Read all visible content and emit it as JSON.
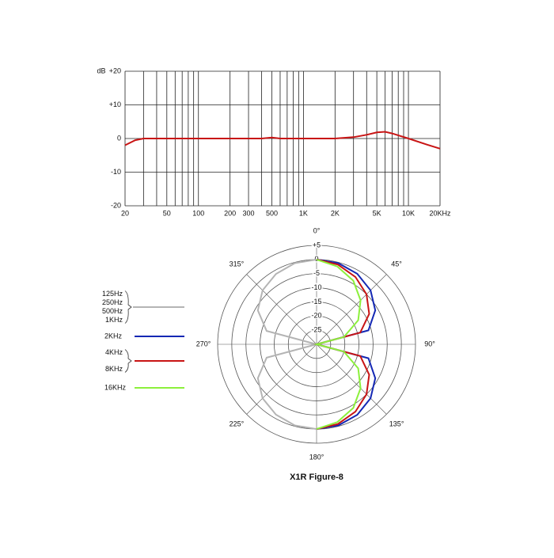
{
  "chart_data": [
    {
      "type": "line",
      "y_label": "dB",
      "log_x": true,
      "grid": true,
      "xlim": [
        20,
        20000
      ],
      "ylim": [
        -20,
        20
      ],
      "xticks": [
        20,
        50,
        100,
        200,
        300,
        500,
        {
          "value": 1000,
          "label": "1K"
        },
        {
          "value": 2000,
          "label": "2K"
        },
        {
          "value": 5000,
          "label": "5K"
        },
        {
          "value": 10000,
          "label": "10K"
        },
        {
          "value": 20000,
          "label": "20KHz"
        }
      ],
      "xminor": [
        30,
        40,
        60,
        70,
        80,
        90,
        400,
        600,
        700,
        800,
        900,
        3000,
        4000,
        6000,
        7000,
        8000,
        9000
      ],
      "yticks": [
        -20,
        -10,
        0,
        {
          "value": 10,
          "label": "+10"
        },
        {
          "value": 20,
          "label": "+20"
        }
      ],
      "x": [
        20,
        25,
        30,
        50,
        100,
        200,
        400,
        500,
        600,
        1000,
        2000,
        3000,
        4000,
        5000,
        6000,
        7000,
        10000,
        15000,
        20000
      ],
      "series": [
        {
          "color": "#c81414",
          "values": [
            -2,
            -0.5,
            0,
            0,
            0,
            0,
            0,
            0.3,
            0,
            0,
            0,
            0.4,
            1.1,
            1.8,
            2,
            1.5,
            0,
            -1.8,
            -3
          ]
        }
      ]
    },
    {
      "type": "polar",
      "title": "X1R Figure-8",
      "rlim": [
        -30,
        5
      ],
      "rticks": [
        {
          "value": 5,
          "label": "+5"
        },
        0,
        -5,
        -10,
        -15,
        -20,
        -25
      ],
      "angle_ticks": [
        {
          "value": 0,
          "label": "0°"
        },
        {
          "value": 45,
          "label": "45°"
        },
        {
          "value": 90,
          "label": "90°"
        },
        {
          "value": 135,
          "label": "135°"
        },
        {
          "value": 180,
          "label": "180°"
        },
        {
          "value": 225,
          "label": "225°"
        },
        {
          "value": 270,
          "label": "270°"
        },
        {
          "value": 315,
          "label": "315°"
        }
      ],
      "series": [
        {
          "name": [
            "125Hz",
            "250Hz",
            "500Hz",
            "1KHz"
          ],
          "color": "#b4b4b4",
          "angles": [
            180,
            195,
            210,
            225,
            240,
            255,
            270,
            285,
            300,
            315,
            330,
            345,
            360
          ],
          "values": [
            0,
            -0.3,
            -1.25,
            -3,
            -6,
            -11.7,
            -30,
            -11.7,
            -6,
            -3,
            -1.25,
            -0.3,
            0
          ]
        },
        {
          "name": "2KHz",
          "color": "#1428b4",
          "angles": [
            0,
            15,
            30,
            45,
            60,
            75,
            90,
            105,
            120,
            135,
            150,
            165,
            180
          ],
          "values": [
            0,
            -0.3,
            -1.2,
            -3,
            -6,
            -11,
            -30,
            -11,
            -6,
            -3,
            -1.2,
            -0.3,
            0
          ]
        },
        {
          "name": [
            "4KHz",
            "8KHz"
          ],
          "color": "#c81414",
          "angles": [
            0,
            15,
            30,
            45,
            60,
            75,
            90,
            105,
            120,
            135,
            150,
            165,
            180
          ],
          "values": [
            0,
            -0.8,
            -2.5,
            -5,
            -8.5,
            -14,
            -30,
            -14,
            -8.5,
            -5,
            -2.5,
            -0.8,
            0
          ]
        },
        {
          "name": "16KHz",
          "color": "#8cf03c",
          "angles": [
            0,
            15,
            30,
            45,
            60,
            75,
            90,
            105,
            120,
            135,
            150,
            165,
            180
          ],
          "values": [
            0,
            -1.5,
            -4,
            -8,
            -13,
            -20,
            -30,
            -20,
            -13,
            -8,
            -4,
            -1.5,
            0
          ]
        }
      ]
    }
  ]
}
